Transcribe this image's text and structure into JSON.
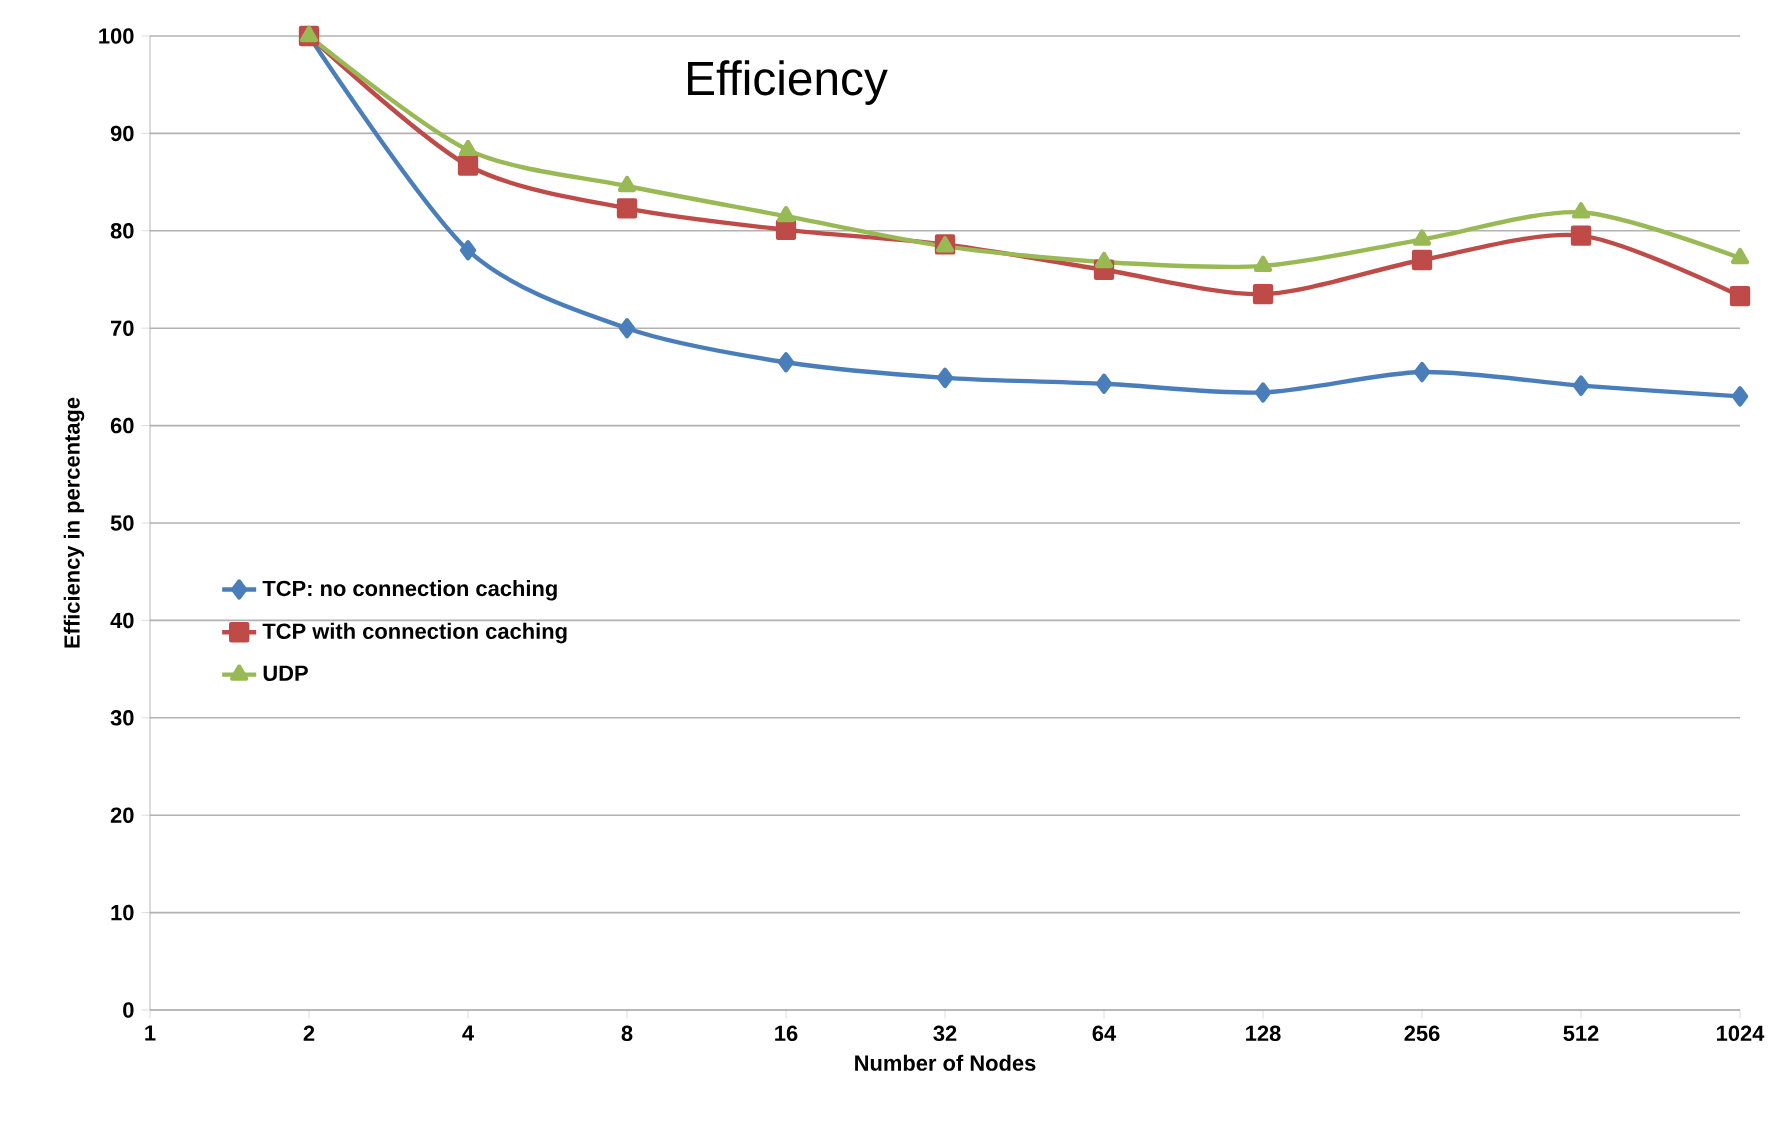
{
  "chart_data": {
    "type": "line",
    "title": "Efficiency",
    "xlabel": "Number of Nodes",
    "ylabel": "Efficiency in percentage",
    "categories": [
      "1",
      "2",
      "4",
      "8",
      "16",
      "32",
      "64",
      "128",
      "256",
      "512",
      "1024"
    ],
    "series": [
      {
        "name": "TCP: no connection caching",
        "color": "#4a7ebb",
        "marker": "diamond",
        "values": [
          null,
          100,
          78.0,
          70.0,
          66.5,
          64.9,
          64.3,
          63.4,
          65.5,
          64.1,
          63.0
        ]
      },
      {
        "name": "TCP with connection caching",
        "color": "#be4b48",
        "marker": "square",
        "values": [
          null,
          100,
          86.7,
          82.3,
          80.1,
          78.6,
          76.0,
          73.5,
          77.0,
          79.5,
          73.3
        ]
      },
      {
        "name": "UDP",
        "color": "#98b954",
        "marker": "triangle",
        "values": [
          null,
          100,
          88.3,
          84.6,
          81.5,
          78.4,
          76.8,
          76.4,
          79.1,
          81.9,
          77.2
        ]
      }
    ],
    "ylim": [
      0,
      100
    ],
    "yticks": [
      0,
      10,
      20,
      30,
      40,
      50,
      60,
      70,
      80,
      90,
      100
    ],
    "grid": "y",
    "legend": "left"
  }
}
